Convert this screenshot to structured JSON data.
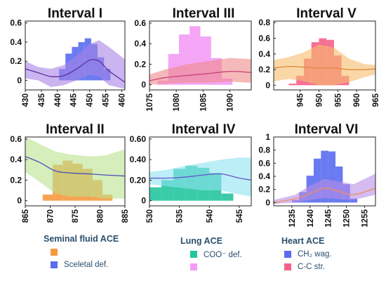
{
  "chart_data": [
    {
      "type": "bar",
      "title": "Interval I",
      "x_ticks": [
        430,
        435,
        440,
        445,
        450,
        455,
        460
      ],
      "xlim": [
        430,
        461
      ],
      "y_ticks": [
        "0",
        "0.2",
        "0.4",
        "0.6"
      ],
      "ylim": [
        -0.1,
        0.62
      ],
      "bar_color": "#5a6cf0",
      "band_color": "#a784e6",
      "line_color": "#5a2ea0",
      "bars": [
        {
          "x": 441.5,
          "y": 0.12
        },
        {
          "x": 443.5,
          "y": 0.28
        },
        {
          "x": 445.5,
          "y": 0.35
        },
        {
          "x": 447.5,
          "y": 0.4
        },
        {
          "x": 449.5,
          "y": 0.44
        },
        {
          "x": 451.5,
          "y": 0.38
        },
        {
          "x": 453.5,
          "y": 0.24
        },
        {
          "x": 455.5,
          "y": 0.12
        }
      ],
      "bar_width": 2,
      "curve": [
        {
          "x": 430,
          "y": 0.12,
          "lo": 0.02,
          "hi": 0.2
        },
        {
          "x": 434,
          "y": 0.08,
          "lo": 0.0,
          "hi": 0.14
        },
        {
          "x": 438,
          "y": 0.04,
          "lo": -0.07,
          "hi": 0.12
        },
        {
          "x": 442,
          "y": 0.05,
          "lo": -0.05,
          "hi": 0.16
        },
        {
          "x": 446,
          "y": 0.12,
          "lo": 0.0,
          "hi": 0.26
        },
        {
          "x": 450,
          "y": 0.21,
          "lo": 0.06,
          "hi": 0.38
        },
        {
          "x": 453,
          "y": 0.2,
          "lo": 0.04,
          "hi": 0.42
        },
        {
          "x": 456,
          "y": 0.1,
          "lo": -0.05,
          "hi": 0.35
        },
        {
          "x": 461,
          "y": -0.02,
          "lo": -0.09,
          "hi": 0.22
        }
      ]
    },
    {
      "type": "bar",
      "title": "Interval III",
      "x_ticks": [
        1075,
        1080,
        1085,
        1090
      ],
      "xlim": [
        1075,
        1094
      ],
      "y_ticks": [
        "0",
        "0.2",
        "0.4",
        "0.6"
      ],
      "ylim": [
        -0.05,
        0.62
      ],
      "bar_color": "#f39bf5",
      "band_color": "#ee8a8a",
      "line_color": "#c8407a",
      "bars": [
        {
          "x": 1077.5,
          "y": 0.04
        },
        {
          "x": 1079.5,
          "y": 0.3
        },
        {
          "x": 1081.5,
          "y": 0.49
        },
        {
          "x": 1083.5,
          "y": 0.57
        },
        {
          "x": 1085.5,
          "y": 0.47
        },
        {
          "x": 1087.5,
          "y": 0.26
        },
        {
          "x": 1089.5,
          "y": 0.06
        }
      ],
      "bar_width": 2,
      "curve": [
        {
          "x": 1075,
          "y": 0.04,
          "lo": 0.0,
          "hi": 0.1
        },
        {
          "x": 1078,
          "y": 0.07,
          "lo": 0.01,
          "hi": 0.15
        },
        {
          "x": 1082,
          "y": 0.09,
          "lo": 0.02,
          "hi": 0.2
        },
        {
          "x": 1086,
          "y": 0.11,
          "lo": 0.02,
          "hi": 0.23
        },
        {
          "x": 1090,
          "y": 0.13,
          "lo": 0.03,
          "hi": 0.26
        },
        {
          "x": 1094,
          "y": 0.12,
          "lo": 0.02,
          "hi": 0.25
        }
      ]
    },
    {
      "type": "bar",
      "title": "Interval V",
      "x_ticks": [
        945,
        950,
        955,
        960,
        965
      ],
      "xlim": [
        938,
        965
      ],
      "y_ticks": [
        "0",
        "0.2",
        "0.4",
        "0.6",
        "0.8"
      ],
      "ylim": [
        -0.06,
        0.82
      ],
      "bar_color": "#f5618a",
      "band_color": "#f7bc6c",
      "line_color": "#e08a3c",
      "bars": [
        {
          "x": 943,
          "y": 0.02
        },
        {
          "x": 945,
          "y": 0.12
        },
        {
          "x": 947,
          "y": 0.34
        },
        {
          "x": 949,
          "y": 0.55
        },
        {
          "x": 951,
          "y": 0.6
        },
        {
          "x": 953,
          "y": 0.58
        },
        {
          "x": 955,
          "y": 0.38
        },
        {
          "x": 957,
          "y": 0.12
        }
      ],
      "bar_width": 2,
      "curve": [
        {
          "x": 938,
          "y": 0.22,
          "lo": 0.05,
          "hi": 0.32
        },
        {
          "x": 942,
          "y": 0.24,
          "lo": 0.08,
          "hi": 0.36
        },
        {
          "x": 946,
          "y": 0.23,
          "lo": 0.05,
          "hi": 0.42
        },
        {
          "x": 950,
          "y": 0.22,
          "lo": 0.0,
          "hi": 0.52
        },
        {
          "x": 954,
          "y": 0.22,
          "lo": 0.0,
          "hi": 0.48
        },
        {
          "x": 958,
          "y": 0.2,
          "lo": 0.04,
          "hi": 0.34
        },
        {
          "x": 962,
          "y": 0.2,
          "lo": 0.1,
          "hi": 0.27
        },
        {
          "x": 965,
          "y": 0.21,
          "lo": 0.14,
          "hi": 0.26
        }
      ]
    },
    {
      "type": "bar",
      "title": "Interval II",
      "x_ticks": [
        865,
        870,
        875,
        880,
        885
      ],
      "xlim": [
        865,
        885
      ],
      "y_ticks": [
        "0",
        "0.2",
        "0.4",
        "0.6"
      ],
      "ylim": [
        -0.05,
        0.62
      ],
      "bar_color": "#f7993e",
      "band_color": "#b9e38f",
      "line_color": "#4a50b8",
      "bars": [
        {
          "x": 869.5,
          "y": 0.06
        },
        {
          "x": 871.5,
          "y": 0.35
        },
        {
          "x": 873.5,
          "y": 0.39
        },
        {
          "x": 875.5,
          "y": 0.36
        },
        {
          "x": 877.5,
          "y": 0.31
        },
        {
          "x": 879.5,
          "y": 0.2
        },
        {
          "x": 881.5,
          "y": 0.06
        }
      ],
      "bar_width": 2,
      "curve": [
        {
          "x": 865,
          "y": 0.43,
          "lo": 0.28,
          "hi": 0.62
        },
        {
          "x": 868,
          "y": 0.37,
          "lo": 0.18,
          "hi": 0.55
        },
        {
          "x": 871,
          "y": 0.29,
          "lo": 0.07,
          "hi": 0.48
        },
        {
          "x": 874,
          "y": 0.27,
          "lo": 0.04,
          "hi": 0.45
        },
        {
          "x": 878,
          "y": 0.26,
          "lo": 0.04,
          "hi": 0.43
        },
        {
          "x": 881,
          "y": 0.25,
          "lo": 0.02,
          "hi": 0.44
        },
        {
          "x": 885,
          "y": 0.24,
          "lo": 0.02,
          "hi": 0.5
        }
      ]
    },
    {
      "type": "bar",
      "title": "Interval IV",
      "x_ticks": [
        530,
        535,
        540,
        545
      ],
      "xlim": [
        530,
        547
      ],
      "y_ticks": [
        "0",
        "0.20",
        "0.40",
        "0.60"
      ],
      "ylim": [
        -0.05,
        0.62
      ],
      "bar_color": "#25c59e",
      "band_color": "#8ee2f2",
      "line_color": "#6a52c8",
      "bars": [
        {
          "x": 531,
          "y": 0.13
        },
        {
          "x": 533,
          "y": 0.2
        },
        {
          "x": 535,
          "y": 0.31
        },
        {
          "x": 537,
          "y": 0.34
        },
        {
          "x": 539,
          "y": 0.32
        },
        {
          "x": 541,
          "y": 0.27
        },
        {
          "x": 543,
          "y": 0.07
        }
      ],
      "bar_width": 2,
      "curve": [
        {
          "x": 530,
          "y": 0.22,
          "lo": 0.16,
          "hi": 0.28
        },
        {
          "x": 533,
          "y": 0.22,
          "lo": 0.14,
          "hi": 0.3
        },
        {
          "x": 536,
          "y": 0.23,
          "lo": 0.12,
          "hi": 0.34
        },
        {
          "x": 539,
          "y": 0.25,
          "lo": 0.1,
          "hi": 0.37
        },
        {
          "x": 542,
          "y": 0.26,
          "lo": 0.1,
          "hi": 0.4
        },
        {
          "x": 545,
          "y": 0.22,
          "lo": 0.06,
          "hi": 0.42
        },
        {
          "x": 547,
          "y": 0.2,
          "lo": 0.04,
          "hi": 0.42
        }
      ]
    },
    {
      "type": "bar",
      "title": "Interval VI",
      "x_ticks": [
        1235,
        1240,
        1245,
        1250,
        1255
      ],
      "xlim": [
        1230,
        1258
      ],
      "y_ticks": [
        "0",
        "0.2",
        "0.4",
        "0.6",
        "0.8",
        "1"
      ],
      "ylim": [
        -0.05,
        1.0
      ],
      "bar_color": "#5a6cf0",
      "band_color": "#b98ee6",
      "line_color": "#f0905c",
      "bars": [
        {
          "x": 1236,
          "y": 0.04
        },
        {
          "x": 1238,
          "y": 0.16
        },
        {
          "x": 1240,
          "y": 0.41
        },
        {
          "x": 1242,
          "y": 0.67
        },
        {
          "x": 1244,
          "y": 0.79
        },
        {
          "x": 1246,
          "y": 0.78
        },
        {
          "x": 1248,
          "y": 0.55
        },
        {
          "x": 1250,
          "y": 0.28
        },
        {
          "x": 1252,
          "y": 0.06
        }
      ],
      "bar_width": 2,
      "curve": [
        {
          "x": 1230,
          "y": 0.0,
          "lo": -0.02,
          "hi": 0.04
        },
        {
          "x": 1236,
          "y": 0.06,
          "lo": 0.0,
          "hi": 0.12
        },
        {
          "x": 1240,
          "y": 0.14,
          "lo": 0.04,
          "hi": 0.26
        },
        {
          "x": 1244,
          "y": 0.22,
          "lo": 0.07,
          "hi": 0.36
        },
        {
          "x": 1248,
          "y": 0.17,
          "lo": 0.05,
          "hi": 0.32
        },
        {
          "x": 1252,
          "y": 0.12,
          "lo": 0.04,
          "hi": 0.28
        },
        {
          "x": 1258,
          "y": 0.22,
          "lo": 0.12,
          "hi": 0.44
        }
      ]
    }
  ],
  "legend": {
    "seminal": {
      "title": "Seminal fluid ACE",
      "items": [
        {
          "label": "",
          "color": "#f7993e"
        },
        {
          "label": "Sceletal def.",
          "color": "#5a6cf0"
        }
      ]
    },
    "lung": {
      "title": "Lung ACE",
      "items": [
        {
          "label": "COO⁻ def.",
          "color": "#25c59e"
        },
        {
          "label": "",
          "color": "#f39bf5"
        }
      ]
    },
    "heart": {
      "title": "Heart ACE",
      "items": [
        {
          "label": "CH₂ wag.",
          "color": "#5a6cf0"
        },
        {
          "label": "C-C str.",
          "color": "#f5618a"
        }
      ]
    }
  }
}
